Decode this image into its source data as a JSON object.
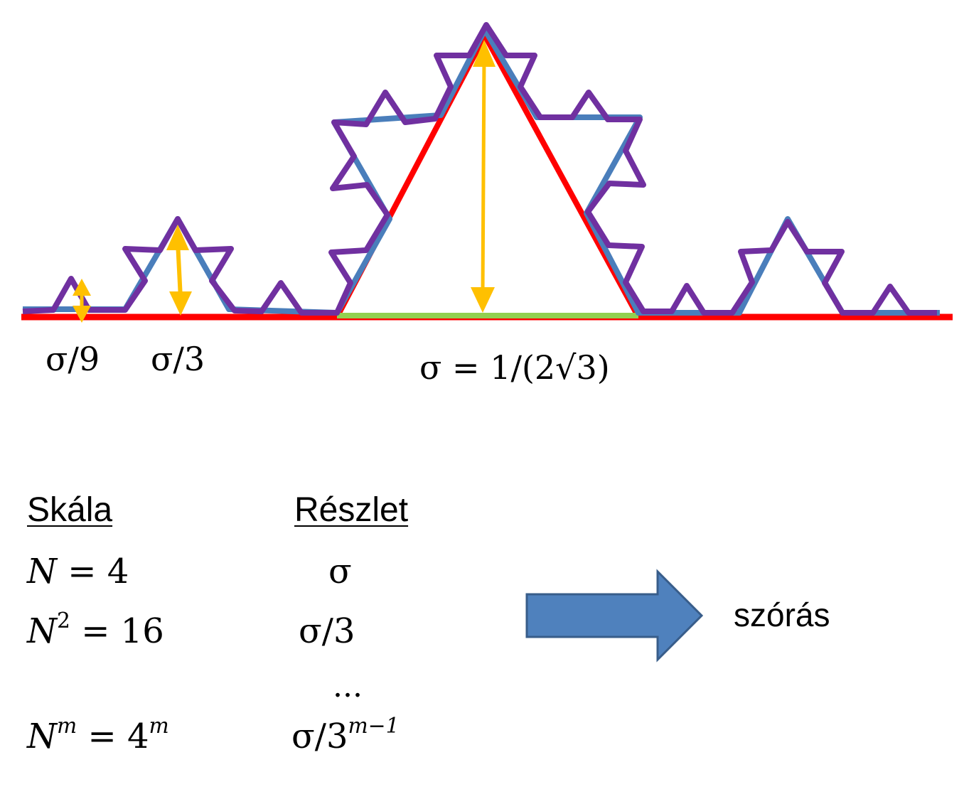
{
  "labels": {
    "s9": "σ/9",
    "s3": "σ/3",
    "sigma_def": "σ = 1/(2√3)"
  },
  "table": {
    "col_scale_header": "Skála",
    "col_detail_header": "Részlet",
    "rows": [
      {
        "base": "N",
        "exp": "",
        "rhs": " = 4",
        "rhs_exp": "",
        "detail": "σ",
        "detail_exp": ""
      },
      {
        "base": "N",
        "exp": "2",
        "rhs": " = 16",
        "rhs_exp": "",
        "detail": "σ/3",
        "detail_exp": ""
      },
      {
        "ellipsis": "..."
      },
      {
        "base": "N",
        "exp": "m",
        "rhs": " = 4",
        "rhs_exp": "m",
        "detail": "σ/3",
        "detail_exp": "m−1"
      }
    ]
  },
  "arrow_label": "szórás",
  "colors": {
    "red": "#ff0000",
    "green": "#92d050",
    "blue": "#4a7ebb",
    "purple": "#7030a0",
    "gold": "#ffc000",
    "arrow_fill": "#4f81bd",
    "arrow_stroke": "#385d8a"
  }
}
